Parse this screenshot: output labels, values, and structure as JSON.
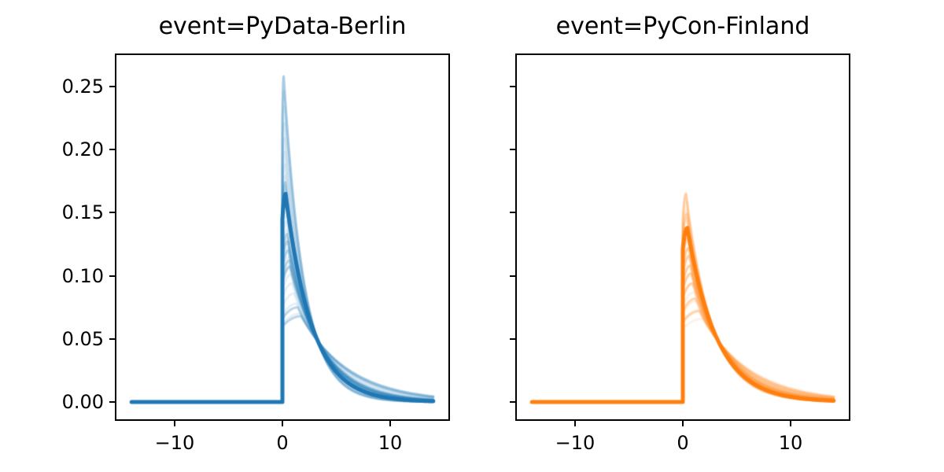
{
  "figure": {
    "background": "#ffffff"
  },
  "chart_data": {
    "type": "line",
    "description": "Two-panel small-multiple of right-skewed density curves per event. Each panel overlays many semi-transparent sampled curves plus one bold opaque mean curve of the same hue. Every curve is 0 for x<0, jumps vertically at x=0 to near its peak, then decays to ~0 by x=14; higher-peaked curves decay faster so the family crosses near x=3.3, y=0.048.",
    "grid": false,
    "legend": null,
    "x": {
      "label": "",
      "data_range": [
        -14,
        14
      ],
      "lim": [
        -15.4,
        15.4
      ],
      "ticks": [
        {
          "value": -10,
          "label": "−10"
        },
        {
          "value": 0,
          "label": "0"
        },
        {
          "value": 10,
          "label": "10"
        }
      ]
    },
    "y": {
      "label": "",
      "lim": [
        -0.0137,
        0.2749
      ],
      "ticks": [
        {
          "value": 0.0,
          "label": "0.00"
        },
        {
          "value": 0.05,
          "label": "0.05"
        },
        {
          "value": 0.1,
          "label": "0.10"
        },
        {
          "value": 0.15,
          "label": "0.15"
        },
        {
          "value": 0.2,
          "label": "0.20"
        },
        {
          "value": 0.25,
          "label": "0.25"
        }
      ]
    },
    "curve_model": {
      "form": "y=0 for x<0; vertical jump at x=0 to jump_frac*peak; quadratic arc up to (m, peak) with m=mode_coef/peak^2 clamped to [0.08,2.0]; then y=peak*exp(-(x-m)/tau) with tau=(cross_x-m)/ln(peak/cross_y); curve sampled on x in [-14,14]",
      "mode_coef": 0.008,
      "jump_frac": 0.88,
      "cross_x": 3.3,
      "cross_y": 0.048
    },
    "styles": {
      "main_lw": 5,
      "main_alpha": 1.0,
      "sample_lw": 3,
      "sample_alpha": 0.3,
      "filler_lw": 3,
      "filler_alpha": 0.11,
      "spine_color": "#000000",
      "tick_color": "#000000"
    },
    "panels": [
      {
        "title": "event=PyData-Berlin",
        "color": "#1f77b4",
        "show_ytick_labels": true,
        "main_curve_peak": 0.165,
        "sample_curve_peaks": [
          0.258,
          0.174,
          0.16,
          0.133,
          0.127,
          0.12,
          0.112,
          0.107,
          0.075,
          0.068
        ],
        "filler_curve_peaks": [
          0.07,
          0.078,
          0.086,
          0.094,
          0.101,
          0.108,
          0.115,
          0.122,
          0.129,
          0.136,
          0.143,
          0.15,
          0.157,
          0.164,
          0.171,
          0.179,
          0.188,
          0.198,
          0.209,
          0.221,
          0.234,
          0.246,
          0.258
        ]
      },
      {
        "title": "event=PyCon-Finland",
        "color": "#ff7f0e",
        "show_ytick_labels": false,
        "main_curve_peak": 0.138,
        "sample_curve_peaks": [
          0.165,
          0.149,
          0.13,
          0.122,
          0.116,
          0.108,
          0.102,
          0.094,
          0.082,
          0.072
        ],
        "filler_curve_peaks": [
          0.066,
          0.073,
          0.08,
          0.087,
          0.094,
          0.101,
          0.108,
          0.115,
          0.122,
          0.129,
          0.137,
          0.145,
          0.152,
          0.158,
          0.165
        ]
      }
    ]
  }
}
